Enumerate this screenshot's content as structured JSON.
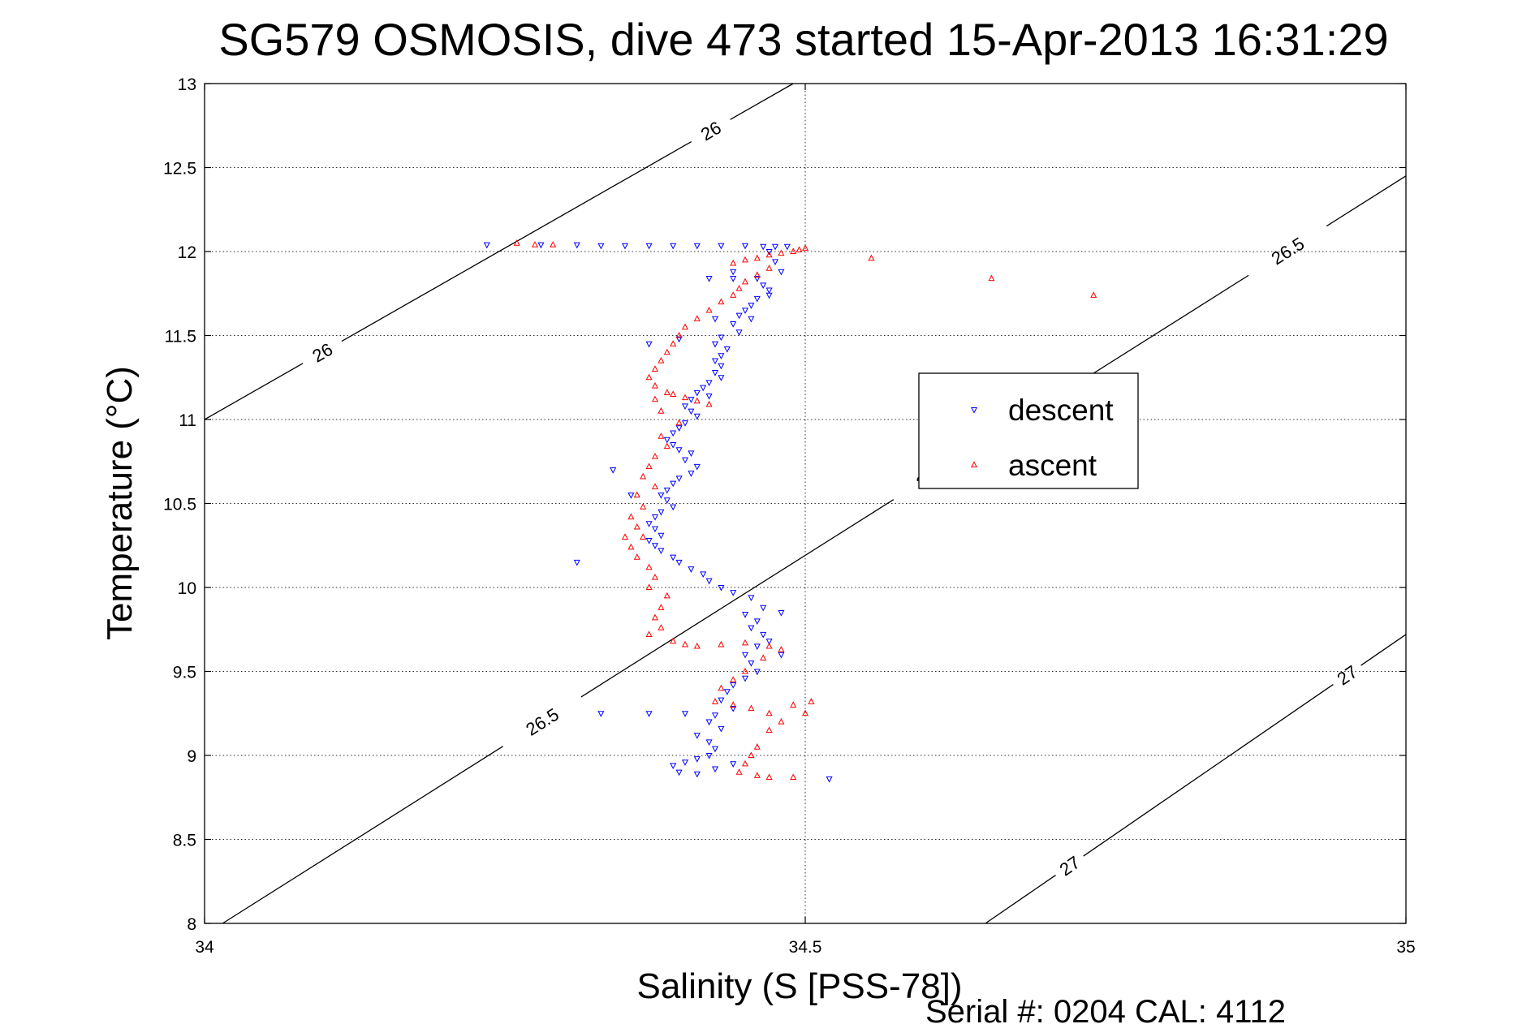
{
  "chart_data": {
    "type": "scatter",
    "title": "SG579 OSMOSIS, dive 473 started 15-Apr-2013 16:31:29",
    "xlabel": "Salinity (S [PSS-78])",
    "ylabel": "Temperature (°C)",
    "xlim": [
      34,
      35
    ],
    "ylim": [
      8,
      13
    ],
    "x_ticks": [
      "34",
      "34.5",
      "35"
    ],
    "y_ticks": [
      "8",
      "8.5",
      "9",
      "9.5",
      "10",
      "10.5",
      "11",
      "11.5",
      "12",
      "12.5",
      "13"
    ],
    "grid": true,
    "legend_position": "right-center",
    "legend": [
      "descent",
      "ascent"
    ],
    "colors": {
      "descent": "#0000ff",
      "ascent": "#ff0000"
    },
    "density_contours": [
      {
        "value": 26.0,
        "points": [
          [
            34.0,
            11.0
          ],
          [
            34.49,
            13.0
          ]
        ],
        "labels": [
          "26",
          "26"
        ]
      },
      {
        "value": 26.5,
        "points": [
          [
            34.015,
            8.0
          ],
          [
            35.0,
            12.45
          ]
        ],
        "labels": [
          "26.5",
          "26.5",
          "26.5"
        ]
      },
      {
        "value": 27.0,
        "points": [
          [
            34.65,
            8.0
          ],
          [
            35.0,
            9.72
          ]
        ],
        "labels": [
          "27",
          "27"
        ]
      }
    ],
    "series": [
      {
        "name": "descent",
        "marker": "triangle-down",
        "points": [
          [
            34.235,
            12.04
          ],
          [
            34.28,
            12.04
          ],
          [
            34.31,
            12.04
          ],
          [
            34.33,
            12.035
          ],
          [
            34.35,
            12.035
          ],
          [
            34.37,
            12.035
          ],
          [
            34.39,
            12.035
          ],
          [
            34.41,
            12.035
          ],
          [
            34.43,
            12.035
          ],
          [
            34.45,
            12.035
          ],
          [
            34.465,
            12.03
          ],
          [
            34.475,
            12.03
          ],
          [
            34.485,
            12.03
          ],
          [
            34.47,
            12.0
          ],
          [
            34.475,
            11.94
          ],
          [
            34.48,
            11.88
          ],
          [
            34.46,
            11.84
          ],
          [
            34.44,
            11.84
          ],
          [
            34.42,
            11.84
          ],
          [
            34.465,
            11.8
          ],
          [
            34.47,
            11.77
          ],
          [
            34.47,
            11.74
          ],
          [
            34.46,
            11.72
          ],
          [
            34.455,
            11.68
          ],
          [
            34.45,
            11.65
          ],
          [
            34.445,
            11.62
          ],
          [
            34.455,
            11.6
          ],
          [
            34.44,
            11.57
          ],
          [
            34.445,
            11.52
          ],
          [
            34.43,
            11.49
          ],
          [
            34.425,
            11.45
          ],
          [
            34.435,
            11.42
          ],
          [
            34.43,
            11.38
          ],
          [
            34.425,
            11.35
          ],
          [
            34.43,
            11.32
          ],
          [
            34.425,
            11.28
          ],
          [
            34.43,
            11.25
          ],
          [
            34.42,
            11.22
          ],
          [
            34.415,
            11.19
          ],
          [
            34.41,
            11.16
          ],
          [
            34.42,
            11.14
          ],
          [
            34.405,
            11.12
          ],
          [
            34.4,
            11.08
          ],
          [
            34.405,
            11.05
          ],
          [
            34.41,
            11.02
          ],
          [
            34.4,
            10.98
          ],
          [
            34.395,
            10.95
          ],
          [
            34.39,
            10.92
          ],
          [
            34.385,
            10.88
          ],
          [
            34.39,
            10.85
          ],
          [
            34.395,
            10.82
          ],
          [
            34.405,
            10.8
          ],
          [
            34.4,
            10.76
          ],
          [
            34.41,
            10.72
          ],
          [
            34.405,
            10.68
          ],
          [
            34.395,
            10.65
          ],
          [
            34.39,
            10.62
          ],
          [
            34.385,
            10.58
          ],
          [
            34.38,
            10.55
          ],
          [
            34.385,
            10.52
          ],
          [
            34.39,
            10.48
          ],
          [
            34.38,
            10.45
          ],
          [
            34.375,
            10.42
          ],
          [
            34.37,
            10.38
          ],
          [
            34.375,
            10.35
          ],
          [
            34.38,
            10.31
          ],
          [
            34.37,
            10.28
          ],
          [
            34.375,
            10.25
          ],
          [
            34.38,
            10.22
          ],
          [
            34.39,
            10.18
          ],
          [
            34.395,
            10.15
          ],
          [
            34.405,
            10.11
          ],
          [
            34.415,
            10.08
          ],
          [
            34.42,
            10.04
          ],
          [
            34.43,
            10.0
          ],
          [
            34.44,
            9.97
          ],
          [
            34.455,
            9.94
          ],
          [
            34.465,
            9.88
          ],
          [
            34.45,
            9.84
          ],
          [
            34.46,
            9.8
          ],
          [
            34.455,
            9.76
          ],
          [
            34.465,
            9.72
          ],
          [
            34.47,
            9.68
          ],
          [
            34.46,
            9.65
          ],
          [
            34.45,
            9.6
          ],
          [
            34.455,
            9.55
          ],
          [
            34.46,
            9.5
          ],
          [
            34.45,
            9.46
          ],
          [
            34.44,
            9.42
          ],
          [
            34.435,
            9.38
          ],
          [
            34.43,
            9.33
          ],
          [
            34.44,
            9.28
          ],
          [
            34.425,
            9.24
          ],
          [
            34.42,
            9.2
          ],
          [
            34.43,
            9.16
          ],
          [
            34.41,
            9.12
          ],
          [
            34.42,
            9.08
          ],
          [
            34.425,
            9.04
          ],
          [
            34.42,
            9.0
          ],
          [
            34.41,
            8.98
          ],
          [
            34.4,
            8.96
          ],
          [
            34.39,
            8.94
          ],
          [
            34.395,
            8.9
          ],
          [
            34.41,
            8.89
          ],
          [
            34.425,
            8.92
          ],
          [
            34.44,
            8.95
          ],
          [
            34.52,
            8.86
          ],
          [
            34.33,
            9.25
          ],
          [
            34.37,
            9.25
          ],
          [
            34.4,
            9.25
          ],
          [
            34.31,
            10.15
          ],
          [
            34.34,
            10.7
          ],
          [
            34.355,
            10.55
          ],
          [
            34.37,
            11.45
          ],
          [
            34.395,
            11.48
          ],
          [
            34.425,
            11.6
          ],
          [
            34.44,
            11.88
          ],
          [
            34.48,
            9.85
          ],
          [
            34.48,
            9.6
          ]
        ]
      },
      {
        "name": "ascent",
        "marker": "triangle-up",
        "points": [
          [
            34.26,
            12.05
          ],
          [
            34.275,
            12.04
          ],
          [
            34.29,
            12.04
          ],
          [
            34.5,
            12.02
          ],
          [
            34.495,
            12.01
          ],
          [
            34.49,
            12.0
          ],
          [
            34.48,
            11.99
          ],
          [
            34.47,
            11.98
          ],
          [
            34.46,
            11.96
          ],
          [
            34.45,
            11.95
          ],
          [
            34.44,
            11.93
          ],
          [
            34.47,
            11.9
          ],
          [
            34.46,
            11.86
          ],
          [
            34.45,
            11.82
          ],
          [
            34.445,
            11.78
          ],
          [
            34.44,
            11.74
          ],
          [
            34.43,
            11.7
          ],
          [
            34.42,
            11.65
          ],
          [
            34.41,
            11.6
          ],
          [
            34.4,
            11.55
          ],
          [
            34.395,
            11.5
          ],
          [
            34.39,
            11.45
          ],
          [
            34.385,
            11.4
          ],
          [
            34.38,
            11.35
          ],
          [
            34.375,
            11.3
          ],
          [
            34.37,
            11.25
          ],
          [
            34.375,
            11.2
          ],
          [
            34.385,
            11.16
          ],
          [
            34.4,
            11.13
          ],
          [
            34.41,
            11.11
          ],
          [
            34.42,
            11.09
          ],
          [
            34.39,
            11.15
          ],
          [
            34.375,
            11.12
          ],
          [
            34.38,
            11.05
          ],
          [
            34.395,
            10.98
          ],
          [
            34.38,
            10.9
          ],
          [
            34.385,
            10.84
          ],
          [
            34.375,
            10.78
          ],
          [
            34.37,
            10.72
          ],
          [
            34.365,
            10.66
          ],
          [
            34.375,
            10.6
          ],
          [
            34.36,
            10.55
          ],
          [
            34.365,
            10.48
          ],
          [
            34.355,
            10.42
          ],
          [
            34.36,
            10.36
          ],
          [
            34.35,
            10.3
          ],
          [
            34.365,
            10.3
          ],
          [
            34.355,
            10.24
          ],
          [
            34.36,
            10.18
          ],
          [
            34.37,
            10.12
          ],
          [
            34.375,
            10.06
          ],
          [
            34.37,
            10.0
          ],
          [
            34.385,
            9.95
          ],
          [
            34.38,
            9.88
          ],
          [
            34.375,
            9.82
          ],
          [
            34.38,
            9.76
          ],
          [
            34.37,
            9.72
          ],
          [
            34.39,
            9.68
          ],
          [
            34.4,
            9.66
          ],
          [
            34.41,
            9.65
          ],
          [
            34.43,
            9.66
          ],
          [
            34.45,
            9.67
          ],
          [
            34.47,
            9.65
          ],
          [
            34.48,
            9.63
          ],
          [
            34.465,
            9.58
          ],
          [
            34.45,
            9.5
          ],
          [
            34.44,
            9.45
          ],
          [
            34.43,
            9.4
          ],
          [
            34.425,
            9.32
          ],
          [
            34.44,
            9.3
          ],
          [
            34.455,
            9.28
          ],
          [
            34.47,
            9.25
          ],
          [
            34.48,
            9.2
          ],
          [
            34.49,
            9.3
          ],
          [
            34.505,
            9.32
          ],
          [
            34.5,
            9.25
          ],
          [
            34.47,
            9.15
          ],
          [
            34.46,
            9.05
          ],
          [
            34.455,
            9.0
          ],
          [
            34.45,
            8.95
          ],
          [
            34.445,
            8.9
          ],
          [
            34.46,
            8.88
          ],
          [
            34.47,
            8.87
          ],
          [
            34.49,
            8.87
          ],
          [
            34.555,
            11.96
          ],
          [
            34.655,
            11.84
          ],
          [
            34.74,
            11.74
          ]
        ]
      }
    ]
  },
  "annotations": {
    "serial": "Serial #: 0204  CAL: 4112"
  }
}
